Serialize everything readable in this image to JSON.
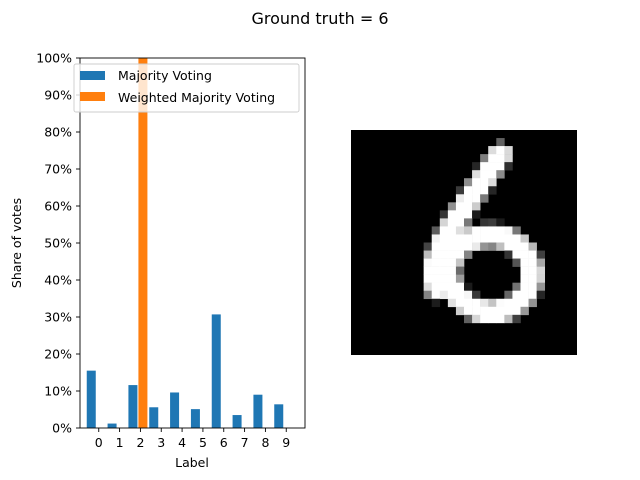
{
  "figure": {
    "title": "Ground truth = 6"
  },
  "chart_data": {
    "type": "bar",
    "categories": [
      "0",
      "1",
      "2",
      "3",
      "4",
      "5",
      "6",
      "7",
      "8",
      "9"
    ],
    "series": [
      {
        "name": "Majority Voting",
        "color": "#1f77b4",
        "values": [
          15.5,
          1.2,
          11.6,
          5.6,
          9.6,
          5.1,
          30.7,
          3.5,
          9.0,
          6.4
        ]
      },
      {
        "name": "Weighted Majority Voting",
        "color": "#ff7f0e",
        "values": [
          0,
          0,
          100,
          0,
          0,
          0,
          0,
          0,
          0,
          0
        ]
      }
    ],
    "xlabel": "Label",
    "ylabel": "Share of votes",
    "ylim": [
      0,
      100
    ],
    "yticks": [
      "0%",
      "10%",
      "20%",
      "30%",
      "40%",
      "50%",
      "60%",
      "70%",
      "80%",
      "90%",
      "100%"
    ],
    "grid": false,
    "legend_position": "top-left"
  },
  "digit_image": {
    "name": "handwritten digit 6",
    "colors": {
      "background": "#000000",
      "stroke": "#ffffff"
    }
  }
}
